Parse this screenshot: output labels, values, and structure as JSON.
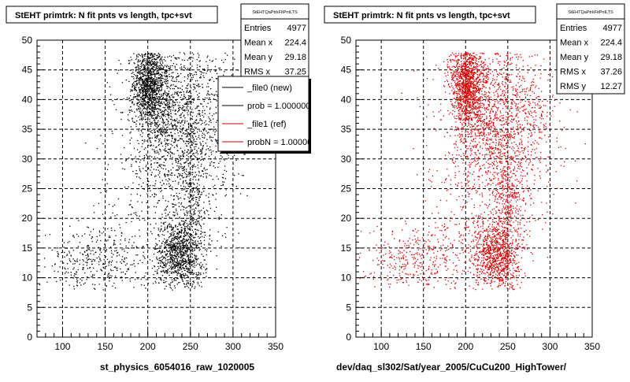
{
  "chart_data": [
    {
      "type": "scatter",
      "title": "StEHT primtrk: N fit pnts vs length, tpc+svt",
      "xlabel": "st_physics_6054016_raw_1020005",
      "ylabel": "",
      "xlim": [
        70,
        350
      ],
      "ylim": [
        0,
        50
      ],
      "x_ticks": [
        100,
        150,
        200,
        250,
        300,
        350
      ],
      "y_ticks": [
        0,
        5,
        10,
        15,
        20,
        25,
        30,
        35,
        40,
        45,
        50
      ],
      "grid": true,
      "marker_color": "#000000",
      "stats": {
        "name": "StEHTQaPtrkFitPntLTS",
        "rows": [
          {
            "label": "Entries",
            "value": "4977"
          },
          {
            "label": "Mean x",
            "value": "224.4"
          },
          {
            "label": "Mean y",
            "value": "29.18"
          },
          {
            "label": "RMS x",
            "value": "37.25"
          }
        ]
      },
      "legend": {
        "placement": "top-right",
        "entries": [
          {
            "label": "_file0 (new)",
            "color": "#000000"
          },
          {
            "label": "prob = 1.000000",
            "color": "#000000"
          },
          {
            "label": "_file1 (ref)",
            "color": "#cc0000"
          },
          {
            "label": "probN = 1.000000",
            "color": "#cc0000"
          }
        ]
      },
      "clusters": [
        {
          "cx": 200,
          "cy": 43,
          "sx": 9,
          "sy": 3.2,
          "n": 950
        },
        {
          "cx": 215,
          "cy": 39,
          "sx": 14,
          "sy": 5,
          "n": 650
        },
        {
          "cx": 235,
          "cy": 14,
          "sx": 13,
          "sy": 2.8,
          "n": 850
        },
        {
          "cx": 250,
          "cy": 25,
          "sx": 10,
          "sy": 12,
          "n": 700
        },
        {
          "cx": 225,
          "cy": 30,
          "sx": 32,
          "sy": 11,
          "n": 950
        },
        {
          "cx": 140,
          "cy": 13,
          "sx": 30,
          "sy": 3,
          "n": 380
        },
        {
          "cx": 275,
          "cy": 38,
          "sx": 22,
          "sy": 8,
          "n": 400
        }
      ]
    },
    {
      "type": "scatter",
      "title": "StEHT primtrk: N fit pnts vs length, tpc+svt",
      "xlabel": "dev/daq_sl302/Sat/year_2005/CuCu200_HighTower/",
      "ylabel": "",
      "xlim": [
        70,
        350
      ],
      "ylim": [
        0,
        50
      ],
      "x_ticks": [
        100,
        150,
        200,
        250,
        300,
        350
      ],
      "y_ticks": [
        0,
        5,
        10,
        15,
        20,
        25,
        30,
        35,
        40,
        45,
        50
      ],
      "grid": true,
      "marker_color": "#dd0000",
      "stats": {
        "name": "StEHTQaPtrkFitPntLTS",
        "rows": [
          {
            "label": "Entries",
            "value": "4977"
          },
          {
            "label": "Mean x",
            "value": "224.4"
          },
          {
            "label": "Mean y",
            "value": "29.18"
          },
          {
            "label": "RMS x",
            "value": "37.26"
          },
          {
            "label": "RMS y",
            "value": "12.27"
          }
        ]
      },
      "clusters": [
        {
          "cx": 200,
          "cy": 43,
          "sx": 9,
          "sy": 3.2,
          "n": 950
        },
        {
          "cx": 215,
          "cy": 39,
          "sx": 14,
          "sy": 5,
          "n": 650
        },
        {
          "cx": 235,
          "cy": 14,
          "sx": 13,
          "sy": 2.8,
          "n": 850
        },
        {
          "cx": 250,
          "cy": 25,
          "sx": 10,
          "sy": 12,
          "n": 700
        },
        {
          "cx": 225,
          "cy": 30,
          "sx": 32,
          "sy": 11,
          "n": 950
        },
        {
          "cx": 140,
          "cy": 13,
          "sx": 30,
          "sy": 3,
          "n": 380
        },
        {
          "cx": 275,
          "cy": 38,
          "sx": 22,
          "sy": 8,
          "n": 400
        }
      ]
    }
  ]
}
